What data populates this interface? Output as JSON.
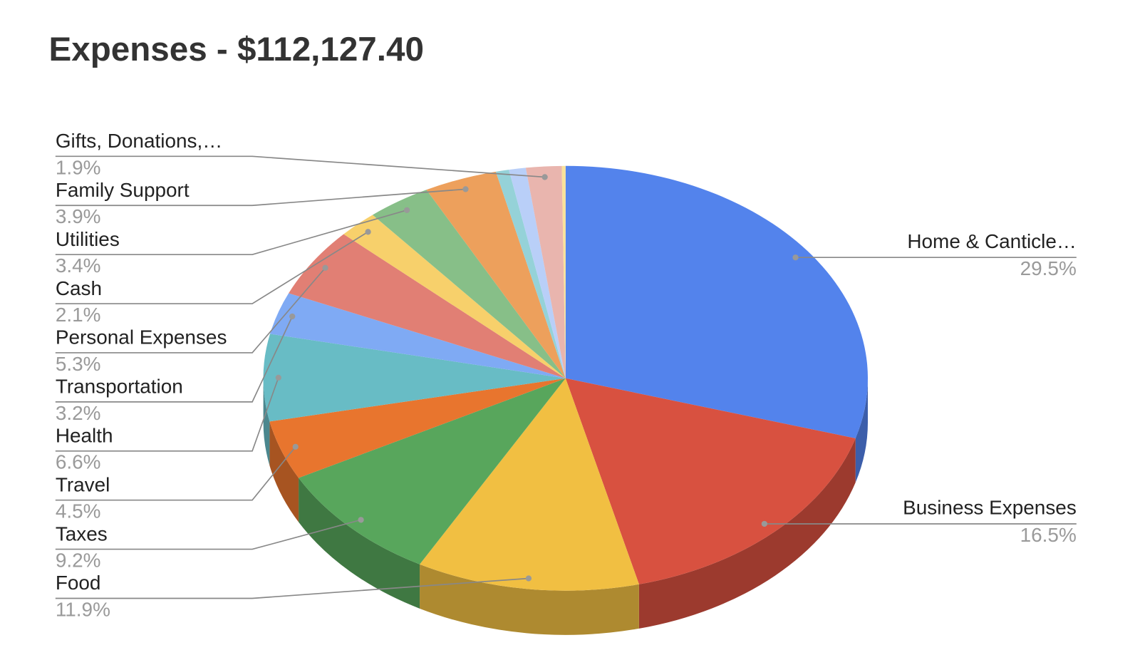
{
  "chart_data": {
    "type": "pie",
    "title": "Expenses - $112,127.40",
    "categories": [
      "Home & Canticle…",
      "Business Expenses",
      "Food",
      "Taxes",
      "Travel",
      "Health",
      "Transportation",
      "Personal Expenses",
      "Cash",
      "Utilities",
      "Family Support",
      null,
      null,
      "Gifts, Donations,…",
      null
    ],
    "values": [
      29.5,
      16.5,
      11.9,
      9.2,
      4.5,
      6.6,
      3.2,
      5.3,
      2.1,
      3.4,
      3.9,
      0.7,
      0.9,
      1.9,
      0.2
    ],
    "value_labels": [
      "29.5%",
      "16.5%",
      "11.9%",
      "9.2%",
      "4.5%",
      "6.6%",
      "3.2%",
      "5.3%",
      "2.1%",
      "3.4%",
      "3.9%",
      null,
      null,
      "1.9%",
      null
    ],
    "colors": [
      "#5383ec",
      "#d85140",
      "#f1bf42",
      "#58a65c",
      "#e8752e",
      "#68bcc5",
      "#7faaf4",
      "#e17f74",
      "#f7d06b",
      "#87bf88",
      "#eda05c",
      "#95d2d8",
      "#b9cff8",
      "#e9b5ae",
      "#f9e29a"
    ],
    "three_d": true
  }
}
